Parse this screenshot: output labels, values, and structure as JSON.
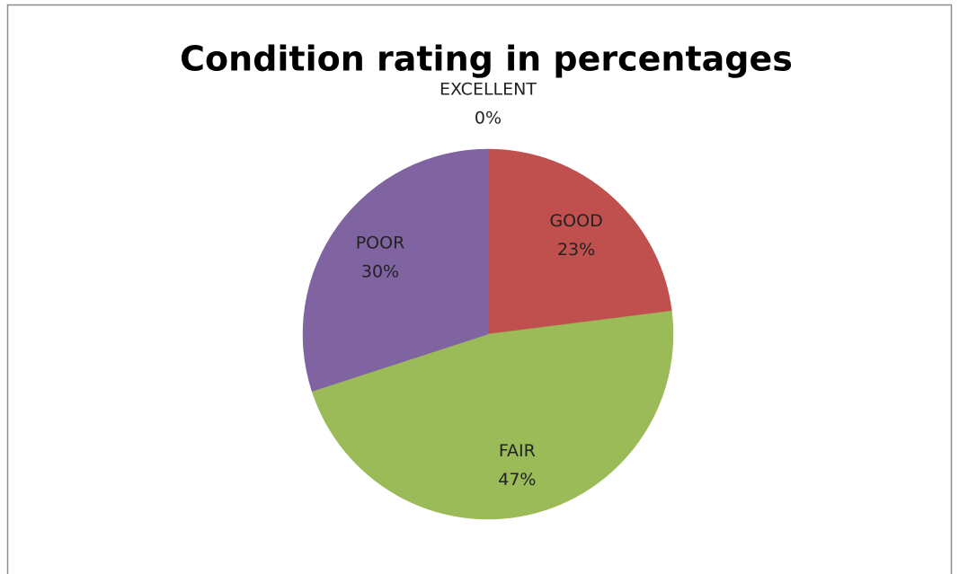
{
  "chart_data": {
    "type": "pie",
    "title": "Condition rating in percentages",
    "categories": [
      "EXCELLENT",
      "GOOD",
      "FAIR",
      "POOR"
    ],
    "values": [
      0,
      23,
      47,
      30
    ],
    "value_labels": [
      "0%",
      "23%",
      "47%",
      "30%"
    ],
    "colors": [
      "#4f81bd",
      "#c0504d",
      "#9bbb59",
      "#8064a2"
    ]
  }
}
